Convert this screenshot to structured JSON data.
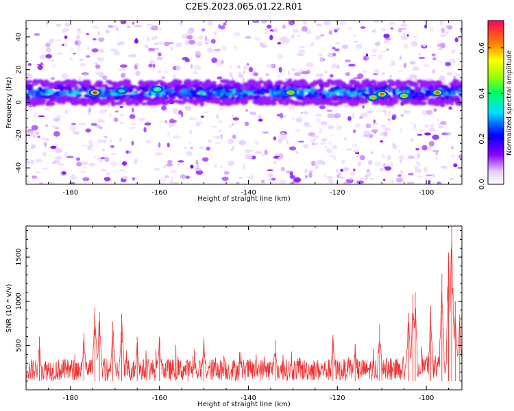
{
  "title": "C2E5.2023.065.01.22.R01",
  "chart_data": [
    {
      "type": "heatmap",
      "xlabel": "Height of straight line (km)",
      "ylabel": "Frequency (Hz)",
      "xlim": [
        -190,
        -92
      ],
      "ylim": [
        -50,
        50
      ],
      "xticks": [
        -180,
        -160,
        -140,
        -120,
        -100
      ],
      "yticks": [
        -40,
        -20,
        0,
        20,
        40
      ],
      "grid": false,
      "colorbar": {
        "label": "Normalized spectral amplitude",
        "range": [
          0,
          0.72
        ],
        "ticks": [
          0.0,
          0.2,
          0.4,
          0.6
        ],
        "tick_labels": [
          "0.0",
          "0.2",
          "0.4",
          "0.6"
        ]
      },
      "band": {
        "center_hz": 6,
        "halfwidth_hz": 7,
        "description_peak_amplitude": 0.7
      },
      "hotspots": [
        {
          "x": -174.5,
          "y": 6,
          "v": 0.7
        },
        {
          "x": -160.5,
          "y": 8,
          "v": 0.45
        },
        {
          "x": -168.5,
          "y": 7,
          "v": 0.4
        },
        {
          "x": -130.5,
          "y": 6,
          "v": 0.6
        },
        {
          "x": -112,
          "y": 3,
          "v": 0.6
        },
        {
          "x": -110,
          "y": 5,
          "v": 0.65
        },
        {
          "x": -105,
          "y": 4,
          "v": 0.6
        },
        {
          "x": -97.5,
          "y": 6,
          "v": 0.65
        }
      ]
    },
    {
      "type": "line",
      "xlabel": "Height of straight line (km)",
      "ylabel": "SNR (10 * v/v)",
      "xlim": [
        -190,
        -92
      ],
      "ylim": [
        0,
        1850
      ],
      "xticks": [
        -180,
        -160,
        -140,
        -120,
        -100
      ],
      "yticks": [
        500,
        1000,
        1500
      ],
      "color": "#ee3333",
      "baseline_range": [
        100,
        350
      ],
      "peaks": [
        {
          "x": -187,
          "y": 600
        },
        {
          "x": -177,
          "y": 640
        },
        {
          "x": -174.5,
          "y": 930
        },
        {
          "x": -173.5,
          "y": 880
        },
        {
          "x": -170.5,
          "y": 770
        },
        {
          "x": -168.5,
          "y": 860
        },
        {
          "x": -165,
          "y": 600
        },
        {
          "x": -160,
          "y": 600
        },
        {
          "x": -150,
          "y": 580
        },
        {
          "x": -134,
          "y": 560
        },
        {
          "x": -121,
          "y": 620
        },
        {
          "x": -116,
          "y": 520
        },
        {
          "x": -110.5,
          "y": 740
        },
        {
          "x": -104,
          "y": 870
        },
        {
          "x": -103,
          "y": 1080
        },
        {
          "x": -102.5,
          "y": 1100
        },
        {
          "x": -99,
          "y": 950
        },
        {
          "x": -96.5,
          "y": 1310
        },
        {
          "x": -95,
          "y": 1550
        },
        {
          "x": -94.3,
          "y": 1850
        },
        {
          "x": -93.5,
          "y": 1000
        },
        {
          "x": -92.5,
          "y": 850
        }
      ]
    }
  ]
}
